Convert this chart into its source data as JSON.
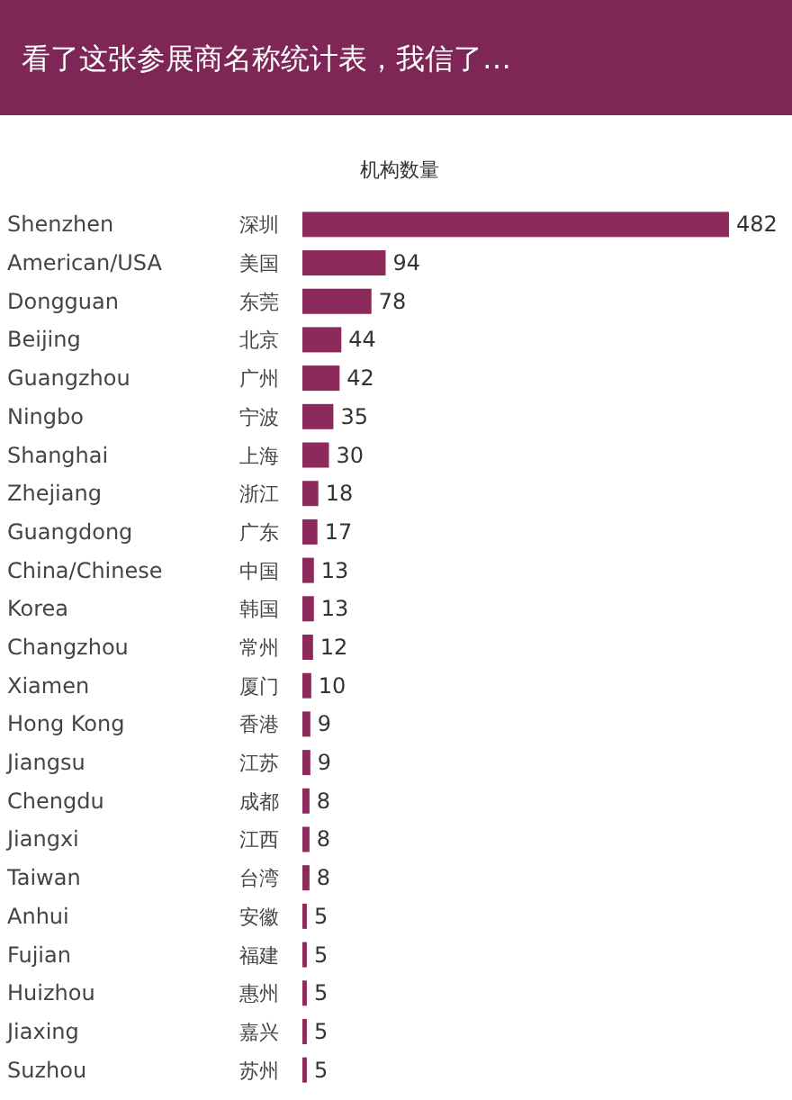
{
  "chart_data": {
    "type": "bar",
    "orientation": "horizontal",
    "title": "看了这张参展商名称统计表，我信了…",
    "ylabel": "机构数量",
    "color": "#8c2a5c",
    "data_labels": true,
    "categories": [
      "Shenzhen 深圳",
      "American/USA 美国",
      "Dongguan 东莞",
      "Beijing 北京",
      "Guangzhou 广州",
      "Ningbo 宁波",
      "Shanghai 上海",
      "Zhejiang 浙江",
      "Guangdong 广东",
      "China/Chinese 中国",
      "Korea 韩国",
      "Changzhou 常州",
      "Xiamen 厦门",
      "Hong Kong 香港",
      "Jiangsu 江苏",
      "Chengdu 成都",
      "Jiangxi 江西",
      "Taiwan 台湾",
      "Anhui 安徽",
      "Fujian 福建",
      "Huizhou 惠州",
      "Jiaxing 嘉兴",
      "Suzhou 苏州"
    ],
    "values": [
      482,
      94,
      78,
      44,
      42,
      35,
      30,
      18,
      17,
      13,
      13,
      12,
      10,
      9,
      9,
      8,
      8,
      8,
      5,
      5,
      5,
      5,
      5
    ]
  }
}
